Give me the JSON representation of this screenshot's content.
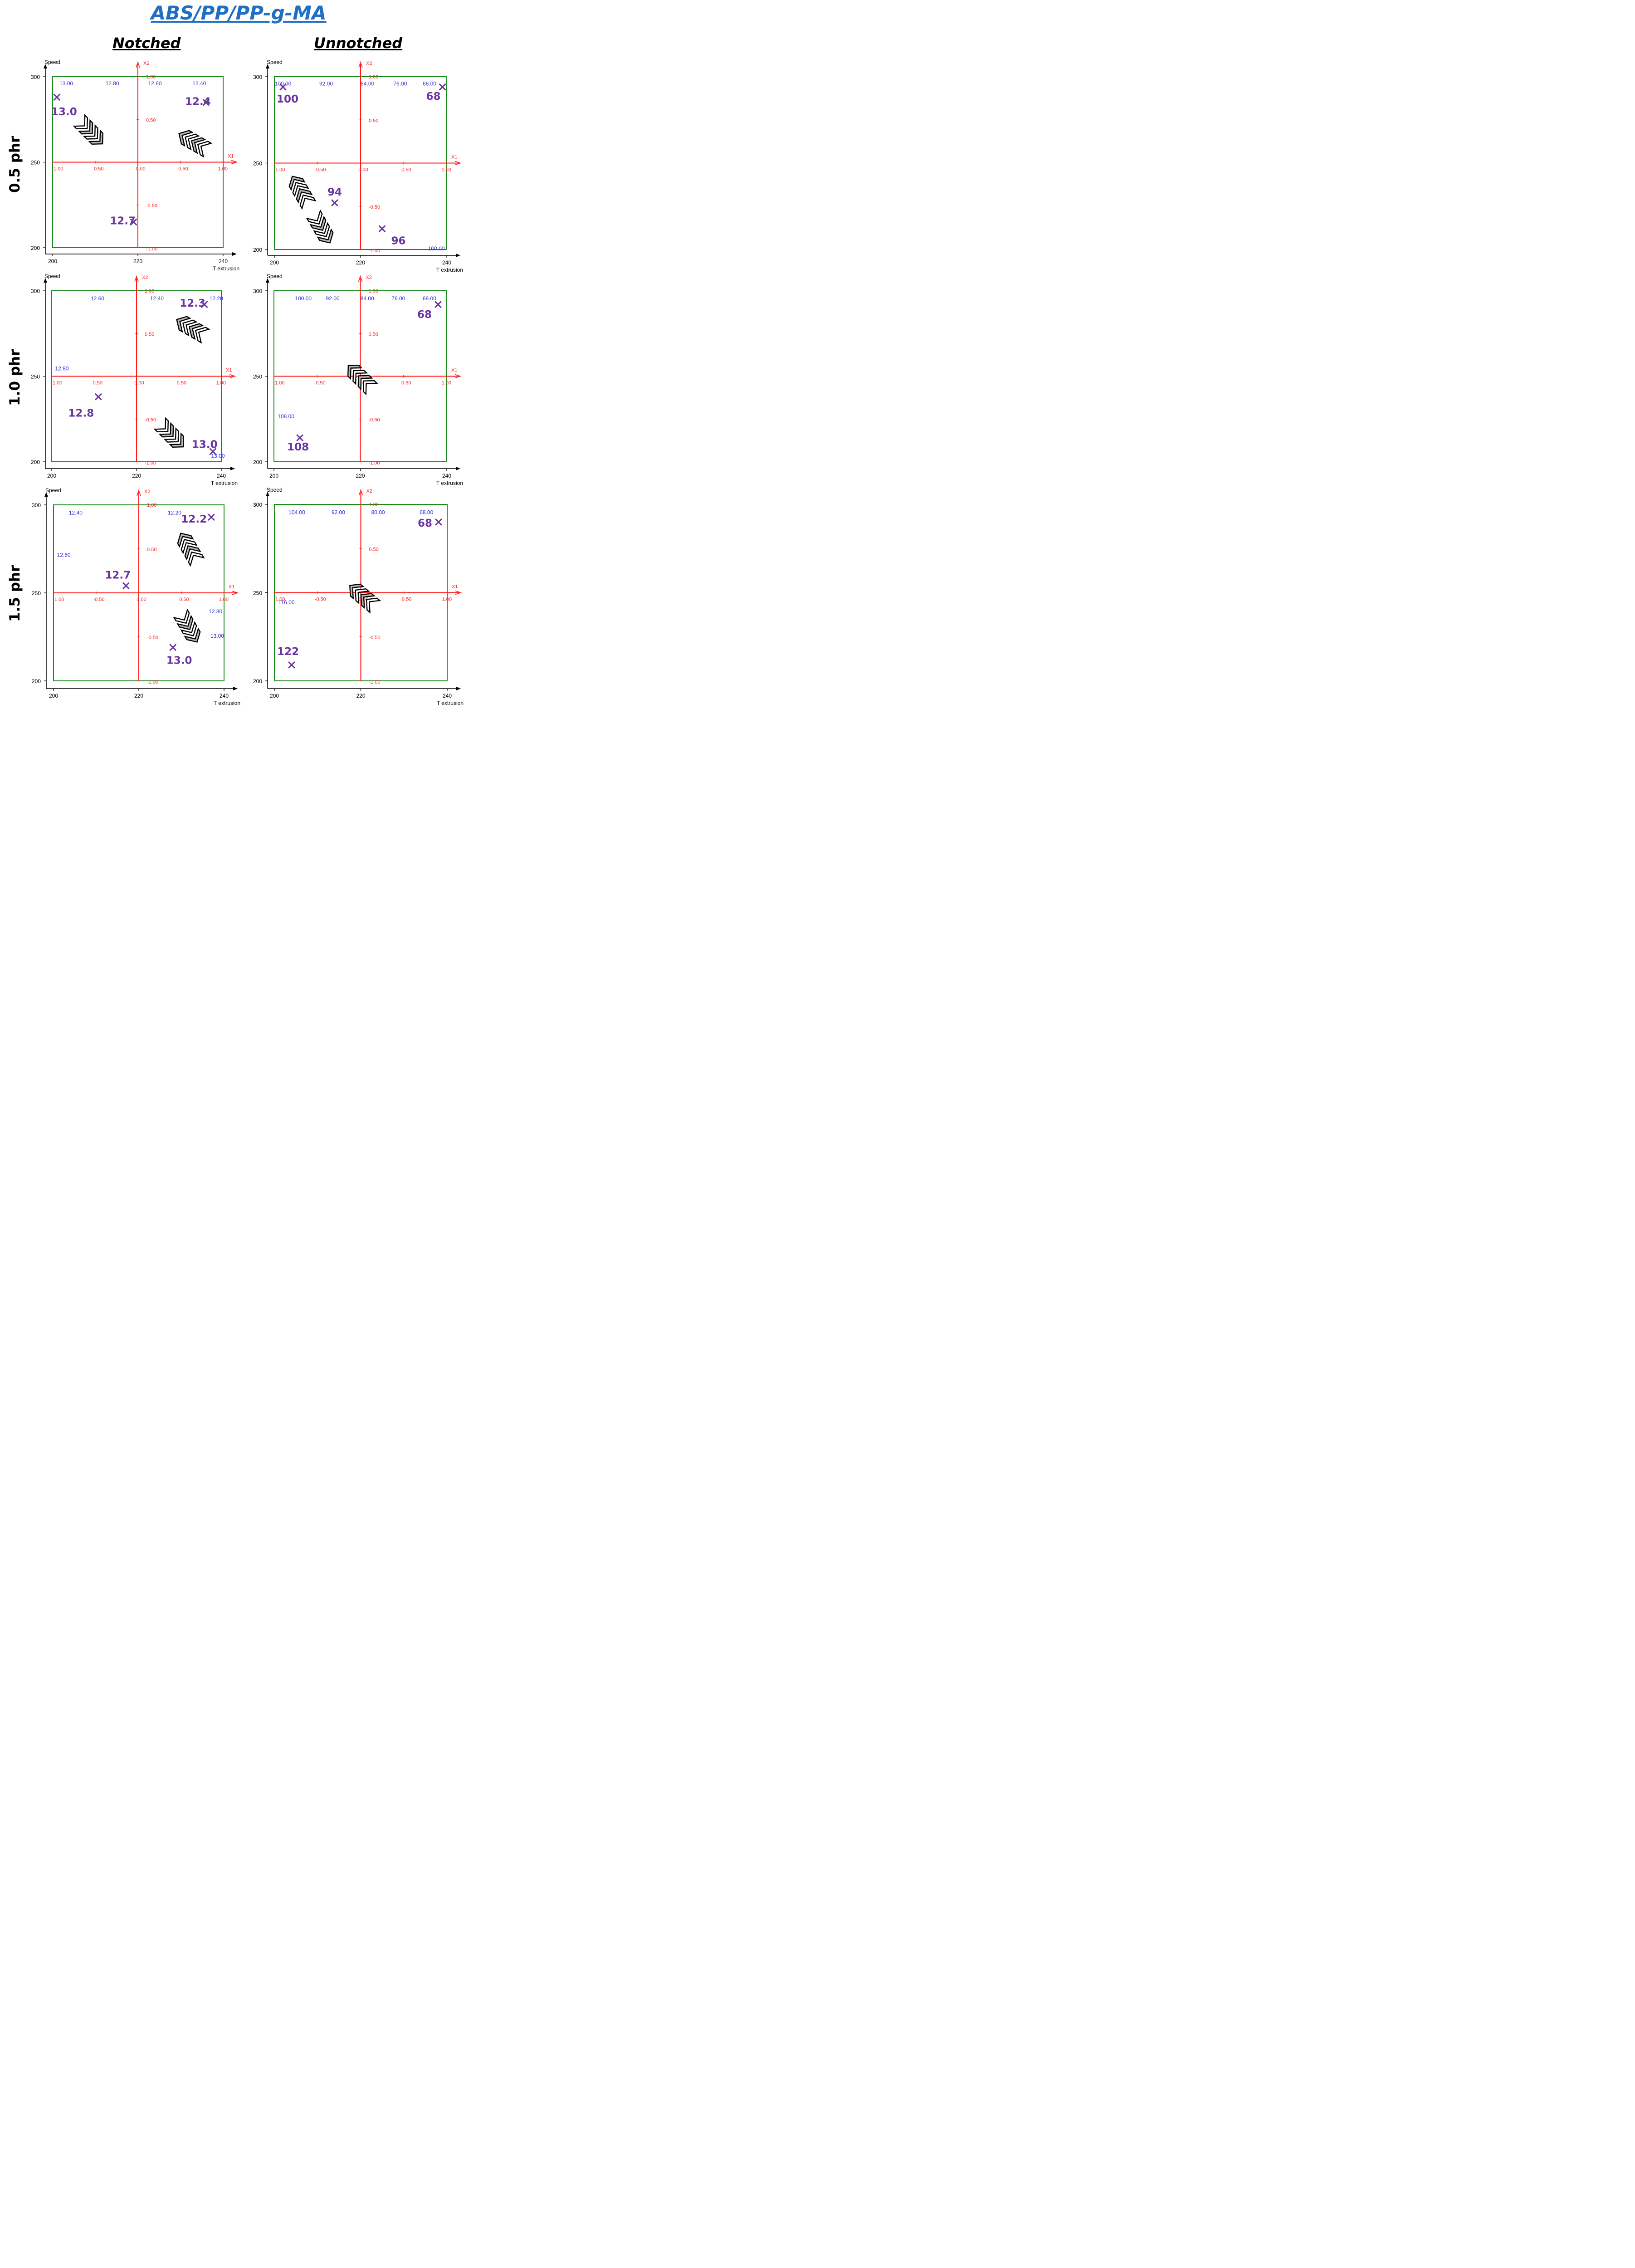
{
  "figure": {
    "title": "ABS/PP/PP-g-MA",
    "columns": [
      "Notched",
      "Unnotched"
    ],
    "rows": [
      "0.5 phr",
      "1.0 phr",
      "1.5 phr"
    ]
  },
  "colors": {
    "contour": "#2a2ad6",
    "axis_coded": "#ff1a1a",
    "frame": "#1a8a1a",
    "annotation": "#6a35a0",
    "title": "#1f6fc5"
  },
  "chart_data": [
    {
      "type": "contour",
      "panel": "Notched 0.5 phr",
      "xlabel": "T extrusion",
      "ylabel": "Speed",
      "coded_x": "X1",
      "coded_y": "X2",
      "xlim": [
        200,
        240
      ],
      "ylim": [
        200,
        300
      ],
      "x_ticks": [
        "200",
        "220",
        "240"
      ],
      "y_ticks": [
        "300",
        "250",
        "200"
      ],
      "coded_x_ticks": [
        "1.00",
        "-0.50",
        "0.00",
        "0.50",
        "1.00"
      ],
      "coded_y_ticks": [
        "1.00",
        "0.50",
        "-0.50",
        "-1.00"
      ],
      "contour_labels": [
        "13.00",
        "12.80",
        "12.60",
        "12.40"
      ],
      "points": [
        {
          "label": "13.0",
          "x": 201,
          "y": 288
        },
        {
          "label": "12.4",
          "x": 236,
          "y": 285
        },
        {
          "label": "12.7",
          "x": 219,
          "y": 215
        }
      ]
    },
    {
      "type": "contour",
      "panel": "Unnotched 0.5 phr",
      "xlabel": "T extrusion",
      "ylabel": "Speed",
      "coded_x": "X1",
      "coded_y": "X2",
      "xlim": [
        200,
        240
      ],
      "ylim": [
        200,
        300
      ],
      "x_ticks": [
        "200",
        "220",
        "240"
      ],
      "y_ticks": [
        "300",
        "250",
        "200"
      ],
      "coded_x_ticks": [
        "1.00",
        "-0.50",
        "0.00",
        "0.50",
        "1.00"
      ],
      "coded_y_ticks": [
        "1.00",
        "0.50",
        "-0.50",
        "-1.00"
      ],
      "contour_labels": [
        "100.00",
        "92.00",
        "84.00",
        "76.00",
        "68.00",
        "100.00"
      ],
      "points": [
        {
          "label": "100",
          "x": 202,
          "y": 294
        },
        {
          "label": "68",
          "x": 239,
          "y": 294
        },
        {
          "label": "94",
          "x": 214,
          "y": 227
        },
        {
          "label": "96",
          "x": 225,
          "y": 212
        }
      ]
    },
    {
      "type": "contour",
      "panel": "Notched 1.0 phr",
      "xlabel": "T extrusion",
      "ylabel": "Speed",
      "coded_x": "X1",
      "coded_y": "X2",
      "xlim": [
        200,
        240
      ],
      "ylim": [
        200,
        300
      ],
      "x_ticks": [
        "200",
        "220",
        "240"
      ],
      "y_ticks": [
        "300",
        "250",
        "200"
      ],
      "coded_x_ticks": [
        "1.00",
        "-0.50",
        "0.00",
        "0.50",
        "1.00"
      ],
      "coded_y_ticks": [
        "1.00",
        "0.50",
        "-0.50",
        "-1.00"
      ],
      "contour_labels": [
        "12.60",
        "12.40",
        "12.20",
        "12.80",
        "13.00"
      ],
      "points": [
        {
          "label": "12.3",
          "x": 236,
          "y": 292
        },
        {
          "label": "12.8",
          "x": 211,
          "y": 238
        },
        {
          "label": "13.0",
          "x": 238,
          "y": 206
        }
      ]
    },
    {
      "type": "contour",
      "panel": "Unnotched 1.0 phr",
      "xlabel": "T extrusion",
      "ylabel": "Speed",
      "coded_x": "X1",
      "coded_y": "X2",
      "xlim": [
        200,
        240
      ],
      "ylim": [
        200,
        300
      ],
      "x_ticks": [
        "200",
        "220",
        "240"
      ],
      "y_ticks": [
        "300",
        "250",
        "200"
      ],
      "coded_x_ticks": [
        "1.00",
        "-0.50",
        "0.00",
        "0.50",
        "1.00"
      ],
      "coded_y_ticks": [
        "1.00",
        "0.50",
        "-0.50",
        "-1.00"
      ],
      "contour_labels": [
        "100.00",
        "92.00",
        "84.00",
        "76.00",
        "68.00",
        "108.00"
      ],
      "points": [
        {
          "label": "68",
          "x": 238,
          "y": 292
        },
        {
          "label": "108",
          "x": 206,
          "y": 214
        }
      ]
    },
    {
      "type": "contour",
      "panel": "Notched 1.5 phr",
      "xlabel": "T extrusion",
      "ylabel": "Speed",
      "coded_x": "X1",
      "coded_y": "X2",
      "xlim": [
        200,
        240
      ],
      "ylim": [
        200,
        300
      ],
      "x_ticks": [
        "200",
        "220",
        "240"
      ],
      "y_ticks": [
        "300",
        "250",
        "200"
      ],
      "coded_x_ticks": [
        "1.00",
        "-0.50",
        "0.00",
        "0.50",
        "1.00"
      ],
      "coded_y_ticks": [
        "1.00",
        "0.50",
        "-0.50",
        "-1.00"
      ],
      "contour_labels": [
        "12.40",
        "12.20",
        "12.60",
        "12.80",
        "13.00"
      ],
      "points": [
        {
          "label": "12.2",
          "x": 237,
          "y": 293
        },
        {
          "label": "12.7",
          "x": 217,
          "y": 254
        },
        {
          "label": "13.0",
          "x": 228,
          "y": 219
        }
      ]
    },
    {
      "type": "contour",
      "panel": "Unnotched 1.5 phr",
      "xlabel": "T extrusion",
      "ylabel": "Speed",
      "coded_x": "X1",
      "coded_y": "X2",
      "xlim": [
        200,
        240
      ],
      "ylim": [
        200,
        300
      ],
      "x_ticks": [
        "200",
        "220",
        "240"
      ],
      "y_ticks": [
        "300",
        "250",
        "200"
      ],
      "coded_x_ticks": [
        "1.00",
        "-0.50",
        "0.00",
        "0.50",
        "1.00"
      ],
      "coded_y_ticks": [
        "1.00",
        "0.50",
        "-0.50",
        "-1.00"
      ],
      "contour_labels": [
        "104.00",
        "92.00",
        "80.00",
        "68.00",
        "116.00"
      ],
      "points": [
        {
          "label": "68",
          "x": 238,
          "y": 290
        },
        {
          "label": "122",
          "x": 204,
          "y": 209
        }
      ]
    }
  ]
}
